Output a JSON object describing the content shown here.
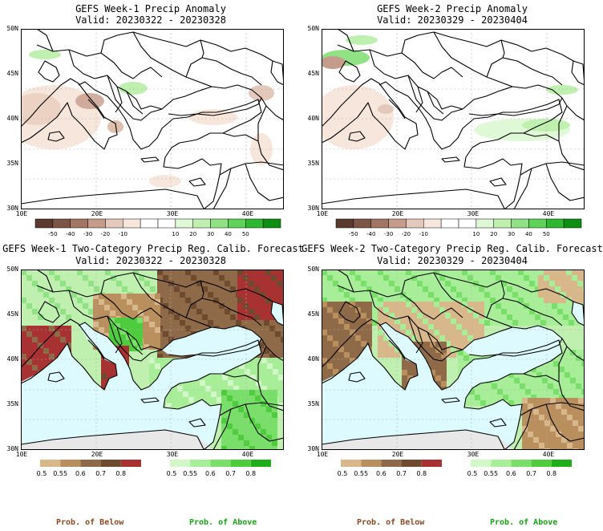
{
  "panels": [
    {
      "title": "GEFS Week-1 Precip Anomaly",
      "subtitle": "Valid: 20230322 - 20230328"
    },
    {
      "title": "GEFS Week-2 Precip Anomaly",
      "subtitle": "Valid: 20230329 - 20230404"
    },
    {
      "title": "GEFS Week-1 Two-Category Precip Reg. Calib. Forecast",
      "subtitle": "Valid: 20230322 - 20230328"
    },
    {
      "title": "GEFS Week-2 Two-Category Precip Reg. Calib. Forecast",
      "subtitle": "Valid: 20230329 - 20230404"
    }
  ],
  "axes": {
    "lat_labels": [
      "50N",
      "45N",
      "40N",
      "35N",
      "30N"
    ],
    "lon_labels": [
      "10E",
      "20E",
      "30E",
      "40E"
    ]
  },
  "anomaly_colorbar": {
    "labels": [
      "-50",
      "-40",
      "-30",
      "-20",
      "-10",
      "10",
      "20",
      "30",
      "40",
      "50"
    ],
    "colors": [
      "#5a3a2e",
      "#7d5546",
      "#a27565",
      "#c59c8b",
      "#e3c9bb",
      "#f7e6dc",
      "#ffffff",
      "#ffffff",
      "#dff8d6",
      "#bff0b0",
      "#90e284",
      "#5fd259",
      "#2eb830",
      "#0f8f12"
    ]
  },
  "prob_colorbars": {
    "below_labels": [
      "0.5",
      "0.55",
      "0.6",
      "0.7",
      "0.8"
    ],
    "below_colors": [
      "#d8b88a",
      "#b98f5e",
      "#8e6a48",
      "#6e4a2f",
      "#a83232"
    ],
    "above_labels": [
      "0.5",
      "0.55",
      "0.6",
      "0.7",
      "0.8"
    ],
    "above_colors": [
      "#d3f8c8",
      "#a8ee98",
      "#7ade6a",
      "#4fcc3e",
      "#1fae1a"
    ]
  },
  "footer": {
    "below_text": "Prob. of Below",
    "above_text": "Prob. of Above",
    "below_color": "#8a4a25",
    "above_color": "#1aa11a"
  },
  "colors": {
    "sea_blue": "#dcfaff",
    "land_gray": "#e8e8e8"
  }
}
